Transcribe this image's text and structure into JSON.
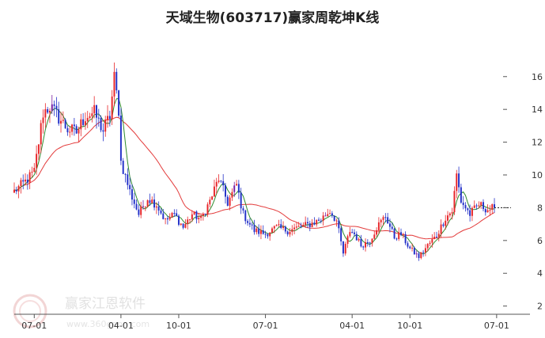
{
  "chart_data": {
    "type": "candlestick",
    "title": "天域生物(603717)赢家周乾坤K线",
    "xlabel": "",
    "ylabel": "",
    "x_ticks": [
      "07-01",
      "04-01",
      "10-01",
      "07-01",
      "04-01",
      "10-01",
      "07-01"
    ],
    "x_tick_weeks": [
      9,
      48,
      74,
      113,
      152,
      178,
      217
    ],
    "y_ticks": [
      2,
      4,
      6,
      8,
      10,
      12,
      14,
      16
    ],
    "ylim": [
      1.5,
      18.5
    ],
    "x_range_weeks": [
      0,
      232
    ],
    "grid": false,
    "up_color": "#e8262a",
    "down_color": "#2432c9",
    "reversal_color": "#7a1fa2",
    "ma_colors": {
      "short": "#2e8b2e",
      "long": "#e33b3b"
    },
    "last_price": 8.0,
    "keypoints": [
      [
        0,
        9.0
      ],
      [
        5,
        9.6
      ],
      [
        9,
        10.2
      ],
      [
        13,
        13.8
      ],
      [
        16,
        14.2
      ],
      [
        20,
        13.5
      ],
      [
        24,
        12.8
      ],
      [
        28,
        12.6
      ],
      [
        32,
        13.6
      ],
      [
        36,
        13.8
      ],
      [
        40,
        12.7
      ],
      [
        43,
        13.6
      ],
      [
        45,
        15.9
      ],
      [
        47,
        14.0
      ],
      [
        48,
        10.8
      ],
      [
        52,
        9.0
      ],
      [
        56,
        7.6
      ],
      [
        60,
        8.6
      ],
      [
        64,
        8.2
      ],
      [
        68,
        7.2
      ],
      [
        72,
        7.6
      ],
      [
        76,
        6.8
      ],
      [
        80,
        7.6
      ],
      [
        84,
        7.3
      ],
      [
        88,
        8.4
      ],
      [
        92,
        9.8
      ],
      [
        96,
        8.3
      ],
      [
        100,
        9.4
      ],
      [
        103,
        7.6
      ],
      [
        108,
        6.6
      ],
      [
        113,
        6.4
      ],
      [
        118,
        6.8
      ],
      [
        123,
        6.6
      ],
      [
        128,
        6.8
      ],
      [
        133,
        7.0
      ],
      [
        138,
        7.3
      ],
      [
        142,
        7.8
      ],
      [
        145,
        7.2
      ],
      [
        148,
        5.2
      ],
      [
        151,
        6.6
      ],
      [
        153,
        6.4
      ],
      [
        156,
        5.7
      ],
      [
        160,
        6.0
      ],
      [
        163,
        6.8
      ],
      [
        167,
        7.5
      ],
      [
        171,
        6.2
      ],
      [
        174,
        6.4
      ],
      [
        178,
        5.5
      ],
      [
        182,
        5.0
      ],
      [
        186,
        5.7
      ],
      [
        190,
        6.3
      ],
      [
        194,
        7.4
      ],
      [
        197,
        7.8
      ],
      [
        199,
        10.0
      ],
      [
        201,
        8.4
      ],
      [
        205,
        7.6
      ],
      [
        209,
        8.2
      ],
      [
        213,
        7.9
      ],
      [
        216,
        8.0
      ]
    ]
  },
  "watermark": {
    "name": "赢家江恩软件",
    "url": "www.360gann.com"
  }
}
